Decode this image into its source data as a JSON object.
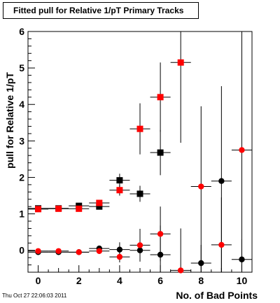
{
  "title_box": {
    "text": "Fitted pull for Relative 1/pT Primary Tracks"
  },
  "footer": {
    "date": "Thu Oct 27 22:06:03 2011"
  },
  "chart_data": {
    "type": "scatter",
    "title": "Fitted pull for Relative 1/pT Primary Tracks",
    "xlabel": "No. of Bad Points",
    "ylabel": "pull for Relative 1/pT",
    "xlim": [
      -0.5,
      10.5
    ],
    "ylim": [
      -0.6,
      6.0
    ],
    "x_ticks": [
      0,
      2,
      4,
      6,
      8,
      10
    ],
    "y_ticks": [
      0,
      1,
      2,
      3,
      4,
      5,
      6
    ],
    "grid": false,
    "legend": "none",
    "series": [
      {
        "marker": "square",
        "color": "#000000",
        "points": [
          {
            "x": 0,
            "y": 1.15,
            "err": 0.05
          },
          {
            "x": 1,
            "y": 1.15,
            "err": 0.05
          },
          {
            "x": 2,
            "y": 1.22,
            "err": 0.06
          },
          {
            "x": 3,
            "y": 1.2,
            "err": 0.08
          },
          {
            "x": 4,
            "y": 1.92,
            "err": 0.18
          },
          {
            "x": 5,
            "y": 1.55,
            "err": 0.22
          },
          {
            "x": 6,
            "y": 2.68,
            "err": 0.62
          }
        ]
      },
      {
        "marker": "square",
        "color": "#ff0000",
        "points": [
          {
            "x": 0,
            "y": 1.13,
            "err": 0.05
          },
          {
            "x": 1,
            "y": 1.14,
            "err": 0.05
          },
          {
            "x": 2,
            "y": 1.14,
            "err": 0.06
          },
          {
            "x": 3,
            "y": 1.3,
            "err": 0.08
          },
          {
            "x": 4,
            "y": 1.65,
            "err": 0.15
          },
          {
            "x": 5,
            "y": 3.33,
            "err": 0.7
          },
          {
            "x": 6,
            "y": 4.2,
            "err": 0.95
          },
          {
            "x": 7,
            "y": 5.15,
            "err": 2.2
          }
        ]
      },
      {
        "marker": "circle",
        "color": "#000000",
        "points": [
          {
            "x": 0,
            "y": -0.05,
            "err": 0.05
          },
          {
            "x": 1,
            "y": -0.05,
            "err": 0.05
          },
          {
            "x": 2,
            "y": -0.05,
            "err": 0.05
          },
          {
            "x": 3,
            "y": 0.05,
            "err": 0.08
          },
          {
            "x": 4,
            "y": 0.02,
            "err": 0.2
          },
          {
            "x": 5,
            "y": 0.0,
            "err": 0.3
          },
          {
            "x": 6,
            "y": -0.12,
            "err": 0.8
          },
          {
            "x": 8,
            "y": -0.35,
            "err": 0.5
          },
          {
            "x": 9,
            "y": 1.9,
            "err": 2.6
          },
          {
            "x": 10,
            "y": -0.25,
            "err": 0.55
          }
        ]
      },
      {
        "marker": "circle",
        "color": "#ff0000",
        "points": [
          {
            "x": 0,
            "y": -0.02,
            "err": 0.05
          },
          {
            "x": 1,
            "y": -0.02,
            "err": 0.05
          },
          {
            "x": 2,
            "y": -0.05,
            "err": 0.05
          },
          {
            "x": 3,
            "y": -0.02,
            "err": 0.08
          },
          {
            "x": 4,
            "y": -0.18,
            "err": 0.15
          },
          {
            "x": 5,
            "y": 0.14,
            "err": 0.45
          },
          {
            "x": 6,
            "y": 0.45,
            "err": 0.75
          },
          {
            "x": 7,
            "y": -0.55,
            "err": 1.15
          },
          {
            "x": 8,
            "y": 1.75,
            "err": 2.2
          },
          {
            "x": 9,
            "y": 0.15,
            "err": 1.3
          },
          {
            "x": 10,
            "y": 2.75,
            "err": 3.3
          }
        ]
      }
    ]
  }
}
